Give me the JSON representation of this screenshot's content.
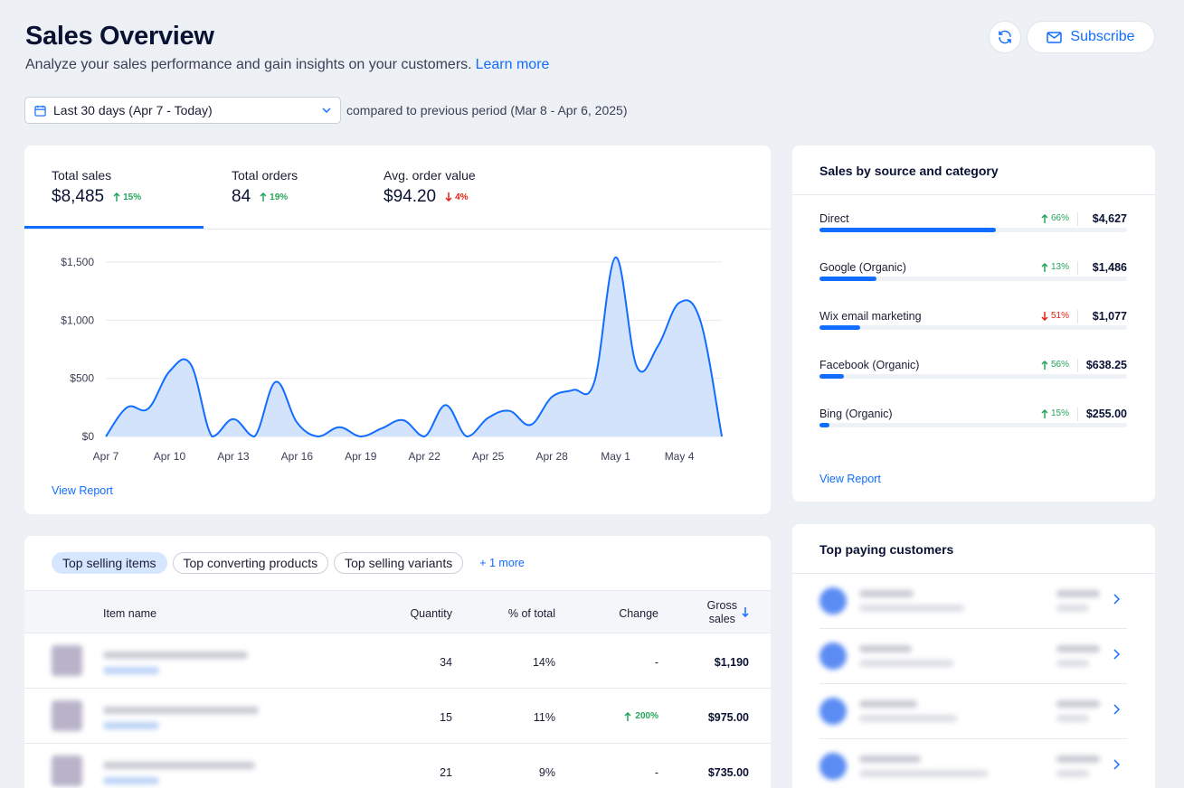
{
  "header": {
    "title": "Sales Overview",
    "subtitle": "Analyze your sales performance and gain insights on your customers.",
    "learn_more": "Learn more",
    "subscribe_label": "Subscribe"
  },
  "filters": {
    "date_range": "Last 30 days (Apr 7 - Today)",
    "compare_text": "compared to previous period (Mar 8 - Apr 6, 2025)"
  },
  "metrics": [
    {
      "label": "Total sales",
      "value": "$8,485",
      "change": "15%",
      "direction": "up"
    },
    {
      "label": "Total orders",
      "value": "84",
      "change": "19%",
      "direction": "up"
    },
    {
      "label": "Avg. order value",
      "value": "$94.20",
      "change": "4%",
      "direction": "down"
    }
  ],
  "chart_data": {
    "type": "area",
    "title": "",
    "xlabel": "",
    "ylabel": "",
    "ylim": [
      0,
      1500
    ],
    "y_ticks": [
      "$0",
      "$500",
      "$1,000",
      "$1,500"
    ],
    "x_ticks": [
      "Apr 7",
      "Apr 10",
      "Apr 13",
      "Apr 16",
      "Apr 19",
      "Apr 22",
      "Apr 25",
      "Apr 28",
      "May 1",
      "May 4"
    ],
    "x": [
      "Apr 7",
      "Apr 8",
      "Apr 9",
      "Apr 10",
      "Apr 11",
      "Apr 12",
      "Apr 13",
      "Apr 14",
      "Apr 15",
      "Apr 16",
      "Apr 17",
      "Apr 18",
      "Apr 19",
      "Apr 20",
      "Apr 21",
      "Apr 22",
      "Apr 23",
      "Apr 24",
      "Apr 25",
      "Apr 26",
      "Apr 27",
      "Apr 28",
      "Apr 29",
      "Apr 30",
      "May 1",
      "May 2",
      "May 3",
      "May 4",
      "May 5",
      "May 6"
    ],
    "values": [
      0,
      250,
      240,
      560,
      620,
      0,
      150,
      0,
      470,
      120,
      0,
      80,
      0,
      70,
      140,
      0,
      270,
      0,
      160,
      220,
      100,
      340,
      400,
      470,
      1540,
      600,
      780,
      1150,
      990,
      0
    ],
    "grid": true,
    "color": "#116dff"
  },
  "main_view_report": "View Report",
  "sources": {
    "title": "Sales by source and category",
    "items": [
      {
        "name": "Direct",
        "change": "66%",
        "direction": "up",
        "amount": "$4,627",
        "share": 0.573
      },
      {
        "name": "Google (Organic)",
        "change": "13%",
        "direction": "up",
        "amount": "$1,486",
        "share": 0.184
      },
      {
        "name": "Wix email marketing",
        "change": "51%",
        "direction": "down",
        "amount": "$1,077",
        "share": 0.133
      },
      {
        "name": "Facebook (Organic)",
        "change": "56%",
        "direction": "up",
        "amount": "$638.25",
        "share": 0.079
      },
      {
        "name": "Bing (Organic)",
        "change": "15%",
        "direction": "up",
        "amount": "$255.00",
        "share": 0.032
      }
    ],
    "view_report": "View Report"
  },
  "items_table": {
    "tabs": [
      "Top selling items",
      "Top converting products",
      "Top selling variants"
    ],
    "more": "+ 1 more",
    "columns": {
      "name": "Item name",
      "quantity": "Quantity",
      "pct": "% of total",
      "change": "Change",
      "gross_1": "Gross",
      "gross_2": "sales"
    },
    "rows": [
      {
        "quantity": "34",
        "pct": "14%",
        "change": "-",
        "gross": "$1,190"
      },
      {
        "quantity": "15",
        "pct": "11%",
        "change": "200%",
        "gross": "$975.00"
      },
      {
        "quantity": "21",
        "pct": "9%",
        "change": "-",
        "gross": "$735.00"
      }
    ]
  },
  "customers": {
    "title": "Top paying customers"
  },
  "colors": {
    "accent": "#116dff",
    "up": "#25a55a",
    "down": "#e62214",
    "background": "#edf0f5"
  }
}
